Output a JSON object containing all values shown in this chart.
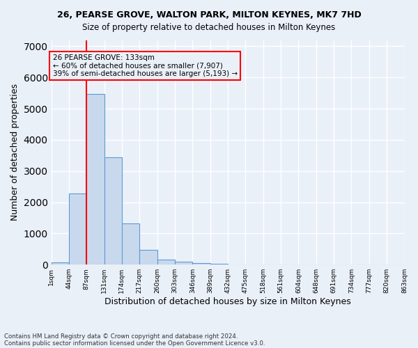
{
  "title_line1": "26, PEARSE GROVE, WALTON PARK, MILTON KEYNES, MK7 7HD",
  "title_line2": "Size of property relative to detached houses in Milton Keynes",
  "xlabel": "Distribution of detached houses by size in Milton Keynes",
  "ylabel": "Number of detached properties",
  "footer_line1": "Contains HM Land Registry data © Crown copyright and database right 2024.",
  "footer_line2": "Contains public sector information licensed under the Open Government Licence v3.0.",
  "bar_values": [
    75,
    2280,
    5480,
    3450,
    1320,
    470,
    160,
    90,
    50,
    35,
    10,
    5,
    3,
    2,
    1,
    1,
    1,
    0,
    0,
    0
  ],
  "bar_color": "#c9d9ed",
  "bar_edge_color": "#5b9bd5",
  "x_tick_labels": [
    "1sqm",
    "44sqm",
    "87sqm",
    "131sqm",
    "174sqm",
    "217sqm",
    "260sqm",
    "303sqm",
    "346sqm",
    "389sqm",
    "432sqm",
    "475sqm",
    "518sqm",
    "561sqm",
    "604sqm",
    "648sqm",
    "691sqm",
    "734sqm",
    "777sqm",
    "820sqm",
    "863sqm"
  ],
  "ylim": [
    0,
    7200
  ],
  "red_line_x": 2.0,
  "annotation_text_line1": "26 PEARSE GROVE: 133sqm",
  "annotation_text_line2": "← 60% of detached houses are smaller (7,907)",
  "annotation_text_line3": "39% of semi-detached houses are larger (5,193) →",
  "background_color": "#eaf0f8",
  "grid_color": "#ffffff"
}
